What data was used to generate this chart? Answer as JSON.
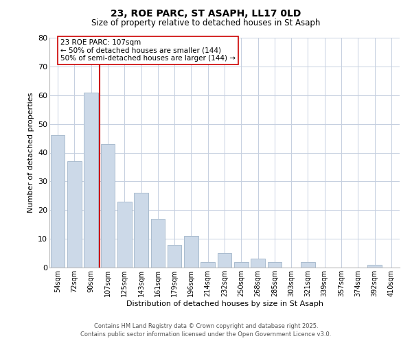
{
  "title": "23, ROE PARC, ST ASAPH, LL17 0LD",
  "subtitle": "Size of property relative to detached houses in St Asaph",
  "xlabel": "Distribution of detached houses by size in St Asaph",
  "ylabel": "Number of detached properties",
  "bar_color": "#ccd9e8",
  "bar_edge_color": "#aabcce",
  "background_color": "#ffffff",
  "grid_color": "#c5cfe0",
  "categories": [
    "54sqm",
    "72sqm",
    "90sqm",
    "107sqm",
    "125sqm",
    "143sqm",
    "161sqm",
    "179sqm",
    "196sqm",
    "214sqm",
    "232sqm",
    "250sqm",
    "268sqm",
    "285sqm",
    "303sqm",
    "321sqm",
    "339sqm",
    "357sqm",
    "374sqm",
    "392sqm",
    "410sqm"
  ],
  "values": [
    46,
    37,
    61,
    43,
    23,
    26,
    17,
    8,
    11,
    2,
    5,
    2,
    3,
    2,
    0,
    2,
    0,
    0,
    0,
    1,
    0
  ],
  "ylim": [
    0,
    80
  ],
  "yticks": [
    0,
    10,
    20,
    30,
    40,
    50,
    60,
    70,
    80
  ],
  "vline_index": 3,
  "vline_color": "#cc0000",
  "annotation_title": "23 ROE PARC: 107sqm",
  "annotation_line1": "← 50% of detached houses are smaller (144)",
  "annotation_line2": "50% of semi-detached houses are larger (144) →",
  "annotation_box_color": "#ffffff",
  "annotation_box_edge": "#cc0000",
  "footer_line1": "Contains HM Land Registry data © Crown copyright and database right 2025.",
  "footer_line2": "Contains public sector information licensed under the Open Government Licence v3.0."
}
